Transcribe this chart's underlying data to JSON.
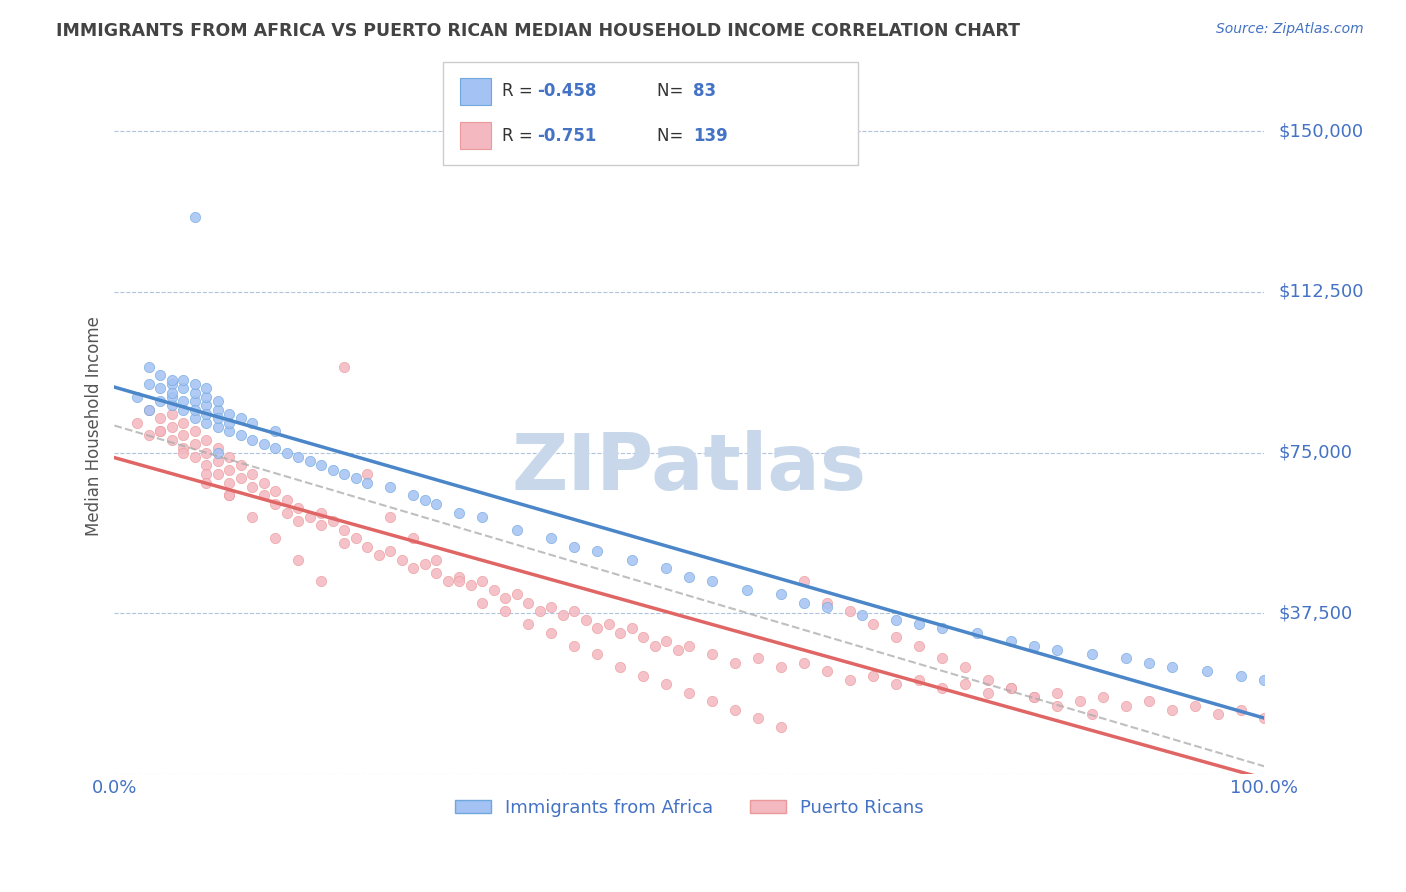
{
  "title": "IMMIGRANTS FROM AFRICA VS PUERTO RICAN MEDIAN HOUSEHOLD INCOME CORRELATION CHART",
  "source_text": "Source: ZipAtlas.com",
  "ylabel": "Median Household Income",
  "xlim": [
    0.0,
    100.0
  ],
  "ylim": [
    0,
    162500
  ],
  "yticks": [
    0,
    37500,
    75000,
    112500,
    150000
  ],
  "ytick_labels": [
    "",
    "$37,500",
    "$75,000",
    "$112,500",
    "$150,000"
  ],
  "xtick_labels": [
    "0.0%",
    "100.0%"
  ],
  "blue_color": "#6fa8dc",
  "pink_color": "#ea9999",
  "blue_fill": "#a4c2f4",
  "pink_fill": "#f4b8c1",
  "line_blue": "#4a86c8",
  "line_pink": "#e06666",
  "watermark": "ZIPatlas",
  "watermark_color": "#c8d8ea",
  "title_color": "#434343",
  "axis_label_color": "#555555",
  "tick_color": "#4472c4",
  "grid_color": "#b0c4de",
  "blue_scatter_x": [
    2,
    3,
    3,
    4,
    4,
    4,
    5,
    5,
    5,
    5,
    6,
    6,
    6,
    6,
    7,
    7,
    7,
    7,
    7,
    8,
    8,
    8,
    8,
    8,
    9,
    9,
    9,
    9,
    10,
    10,
    10,
    11,
    11,
    12,
    12,
    13,
    14,
    14,
    15,
    16,
    17,
    18,
    19,
    20,
    21,
    22,
    24,
    26,
    27,
    28,
    30,
    32,
    35,
    38,
    40,
    42,
    45,
    48,
    50,
    52,
    55,
    58,
    60,
    62,
    65,
    68,
    70,
    72,
    75,
    78,
    80,
    82,
    85,
    88,
    90,
    92,
    95,
    98,
    100,
    3,
    5,
    7,
    9
  ],
  "blue_scatter_y": [
    88000,
    91000,
    85000,
    90000,
    87000,
    93000,
    86000,
    88000,
    91000,
    89000,
    87000,
    85000,
    90000,
    92000,
    83000,
    87000,
    85000,
    89000,
    91000,
    82000,
    86000,
    84000,
    88000,
    90000,
    81000,
    85000,
    83000,
    87000,
    80000,
    84000,
    82000,
    79000,
    83000,
    78000,
    82000,
    77000,
    76000,
    80000,
    75000,
    74000,
    73000,
    72000,
    71000,
    70000,
    69000,
    68000,
    67000,
    65000,
    64000,
    63000,
    61000,
    60000,
    57000,
    55000,
    53000,
    52000,
    50000,
    48000,
    46000,
    45000,
    43000,
    42000,
    40000,
    39000,
    37000,
    36000,
    35000,
    34000,
    33000,
    31000,
    30000,
    29000,
    28000,
    27000,
    26000,
    25000,
    24000,
    23000,
    22000,
    95000,
    92000,
    130000,
    75000
  ],
  "pink_scatter_x": [
    2,
    3,
    3,
    4,
    4,
    5,
    5,
    5,
    6,
    6,
    6,
    7,
    7,
    7,
    8,
    8,
    8,
    8,
    9,
    9,
    9,
    10,
    10,
    10,
    10,
    11,
    11,
    12,
    12,
    13,
    13,
    14,
    14,
    15,
    15,
    16,
    16,
    17,
    18,
    18,
    19,
    20,
    20,
    21,
    22,
    23,
    24,
    25,
    26,
    27,
    28,
    29,
    30,
    31,
    32,
    33,
    34,
    35,
    36,
    37,
    38,
    39,
    40,
    41,
    42,
    43,
    44,
    45,
    46,
    47,
    48,
    49,
    50,
    52,
    54,
    56,
    58,
    60,
    62,
    64,
    66,
    68,
    70,
    72,
    74,
    76,
    78,
    80,
    82,
    84,
    86,
    88,
    90,
    92,
    94,
    96,
    98,
    100,
    4,
    6,
    8,
    10,
    12,
    14,
    16,
    18,
    20,
    22,
    24,
    26,
    28,
    30,
    32,
    34,
    36,
    38,
    40,
    42,
    44,
    46,
    48,
    50,
    52,
    54,
    56,
    58,
    60,
    62,
    64,
    66,
    68,
    70,
    72,
    74,
    76,
    78,
    80,
    82,
    85
  ],
  "pink_scatter_y": [
    82000,
    85000,
    79000,
    83000,
    80000,
    84000,
    81000,
    78000,
    82000,
    79000,
    76000,
    80000,
    77000,
    74000,
    78000,
    75000,
    72000,
    70000,
    76000,
    73000,
    70000,
    74000,
    71000,
    68000,
    65000,
    72000,
    69000,
    70000,
    67000,
    68000,
    65000,
    66000,
    63000,
    64000,
    61000,
    62000,
    59000,
    60000,
    61000,
    58000,
    59000,
    57000,
    54000,
    55000,
    53000,
    51000,
    52000,
    50000,
    48000,
    49000,
    47000,
    45000,
    46000,
    44000,
    45000,
    43000,
    41000,
    42000,
    40000,
    38000,
    39000,
    37000,
    38000,
    36000,
    34000,
    35000,
    33000,
    34000,
    32000,
    30000,
    31000,
    29000,
    30000,
    28000,
    26000,
    27000,
    25000,
    26000,
    24000,
    22000,
    23000,
    21000,
    22000,
    20000,
    21000,
    19000,
    20000,
    18000,
    19000,
    17000,
    18000,
    16000,
    17000,
    15000,
    16000,
    14000,
    15000,
    13000,
    80000,
    75000,
    68000,
    65000,
    60000,
    55000,
    50000,
    45000,
    95000,
    70000,
    60000,
    55000,
    50000,
    45000,
    40000,
    38000,
    35000,
    33000,
    30000,
    28000,
    25000,
    23000,
    21000,
    19000,
    17000,
    15000,
    13000,
    11000,
    45000,
    40000,
    38000,
    35000,
    32000,
    30000,
    27000,
    25000,
    22000,
    20000,
    18000,
    16000,
    14000
  ]
}
